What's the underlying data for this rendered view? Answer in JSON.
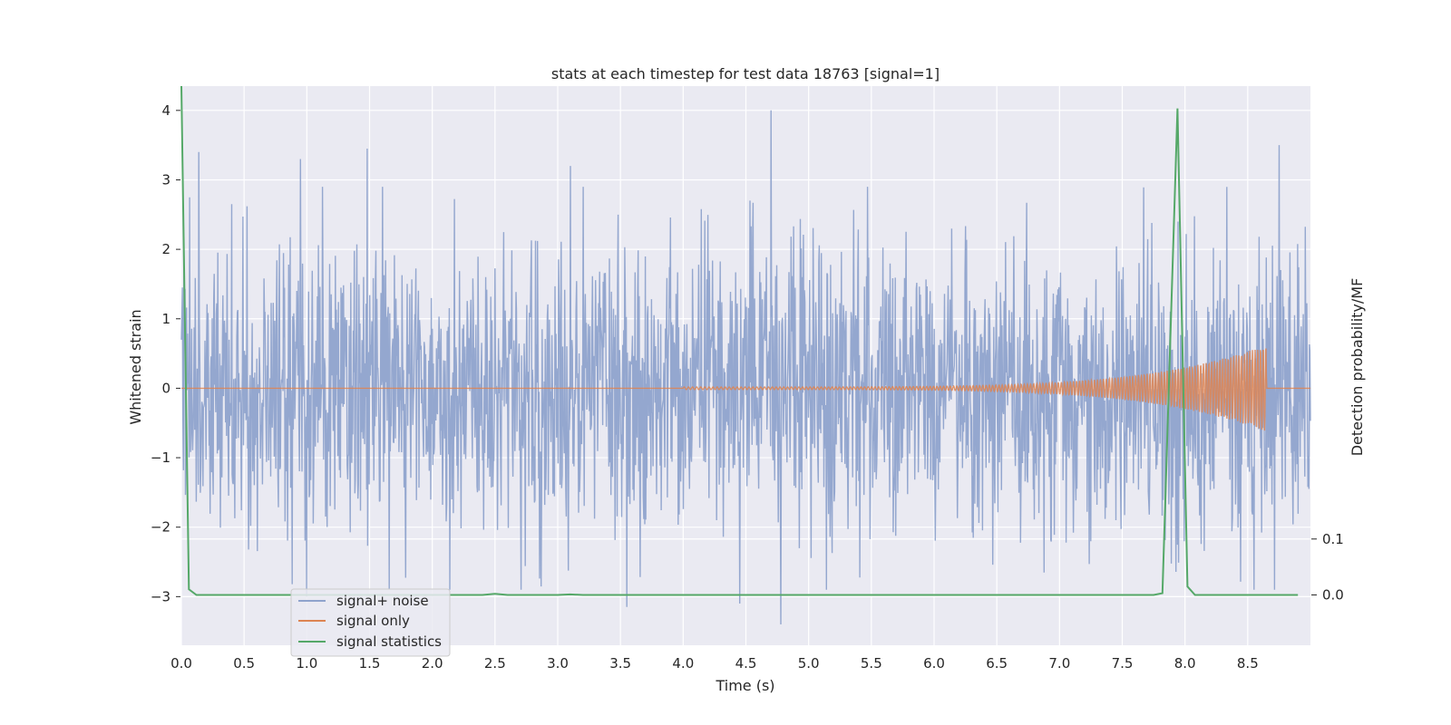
{
  "chart_data": {
    "type": "line",
    "title": "stats at each timestep for test data 18763 [signal=1]",
    "xlabel": "Time (s)",
    "ylabel": "Whitened strain",
    "y2label": "Detection probability/MF",
    "xlim": [
      0.0,
      9.0
    ],
    "ylim": [
      -3.7,
      4.35
    ],
    "y2lim": [
      -0.09,
      0.91
    ],
    "xticks": [
      "0.0",
      "0.5",
      "1.0",
      "1.5",
      "2.0",
      "2.5",
      "3.0",
      "3.5",
      "4.0",
      "4.5",
      "5.0",
      "5.5",
      "6.0",
      "6.5",
      "7.0",
      "7.5",
      "8.0",
      "8.5"
    ],
    "yticks": [
      "4",
      "3",
      "2",
      "1",
      "0",
      "−1",
      "−2",
      "−3"
    ],
    "y2ticks": [
      "0.1",
      "0.0"
    ],
    "grid": true,
    "legend_position": "lower-left",
    "series": [
      {
        "name": "signal+ noise",
        "color": "#8fa3cc",
        "description_values": "gaussian whitened noise with signal, amplitude mostly within ±2, peaks up to about 4 at t≈4.7 and down to about −3.4 at t≈4.8",
        "envelope_peaks": [
          {
            "x": 0.14,
            "y": 3.4
          },
          {
            "x": 0.95,
            "y": 3.3
          },
          {
            "x": 1.48,
            "y": 3.45
          },
          {
            "x": 3.1,
            "y": 3.2
          },
          {
            "x": 4.7,
            "y": 4.0
          },
          {
            "x": 8.75,
            "y": 3.5
          },
          {
            "x": 1.0,
            "y": -3.0
          },
          {
            "x": 3.55,
            "y": -3.15
          },
          {
            "x": 4.45,
            "y": -3.1
          },
          {
            "x": 4.78,
            "y": -3.4
          },
          {
            "x": 8.55,
            "y": -2.9
          }
        ]
      },
      {
        "name": "signal only",
        "color": "#dd8452",
        "description_values": "chirp signal with growing amplitude from ~4.0 s, max amplitude about 0.6 near 8.65 s, then zero",
        "chirp_start": 4.0,
        "chirp_end": 8.65,
        "max_amplitude": 0.62
      },
      {
        "name": "signal statistics",
        "color": "#55a868",
        "axis": "right",
        "x": [
          0.0,
          0.06,
          0.12,
          2.4,
          2.5,
          2.6,
          3.0,
          3.1,
          3.2,
          7.75,
          7.82,
          7.94,
          8.02,
          8.08,
          8.9
        ],
        "y": [
          0.91,
          0.01,
          0.0,
          0.0,
          0.002,
          0.0,
          0.0,
          0.001,
          0.0,
          0.0,
          0.003,
          0.87,
          0.015,
          0.0,
          0.0
        ]
      }
    ]
  }
}
